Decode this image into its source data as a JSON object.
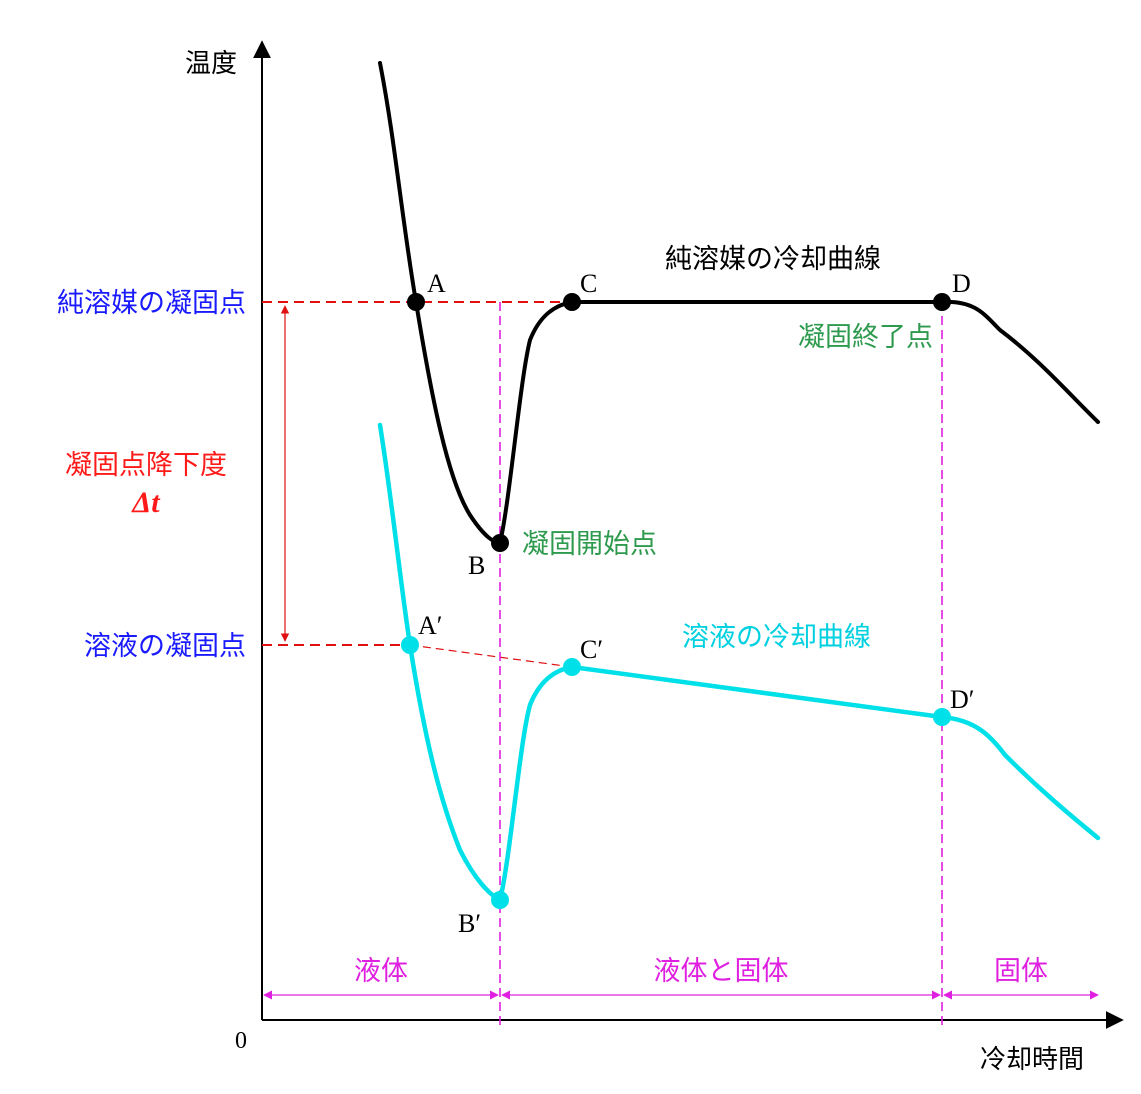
{
  "axes": {
    "y_label": "温度",
    "x_label": "冷却時間",
    "origin_label": "0"
  },
  "levels": {
    "pure_freezing_point": "純溶媒の凝固点",
    "depression_line1": "凝固点降下度",
    "depression_line2": "Δt",
    "solution_freezing_point": "溶液の凝固点"
  },
  "curves": {
    "pure_title": "純溶媒の冷却曲線",
    "solution_title": "溶液の冷却曲線"
  },
  "annotations": {
    "freeze_start": "凝固開始点",
    "freeze_end": "凝固終了点"
  },
  "points": {
    "A": "A",
    "B": "B",
    "C": "C",
    "D": "D",
    "A_prime": "A′",
    "B_prime": "B′",
    "C_prime": "C′",
    "D_prime": "D′"
  },
  "phases": {
    "liquid": "液体",
    "liquid_solid": "液体と固体",
    "solid": "固体"
  },
  "colors": {
    "pure_curve": "#000000",
    "solution_curve": "#00e0e8",
    "freezing_point_label": "#1a1aff",
    "depression_label": "#ff1a1a",
    "reference_dash": "#e01010",
    "phase_marker": "#e020e0",
    "annotation_green": "#2e9a4e"
  }
}
